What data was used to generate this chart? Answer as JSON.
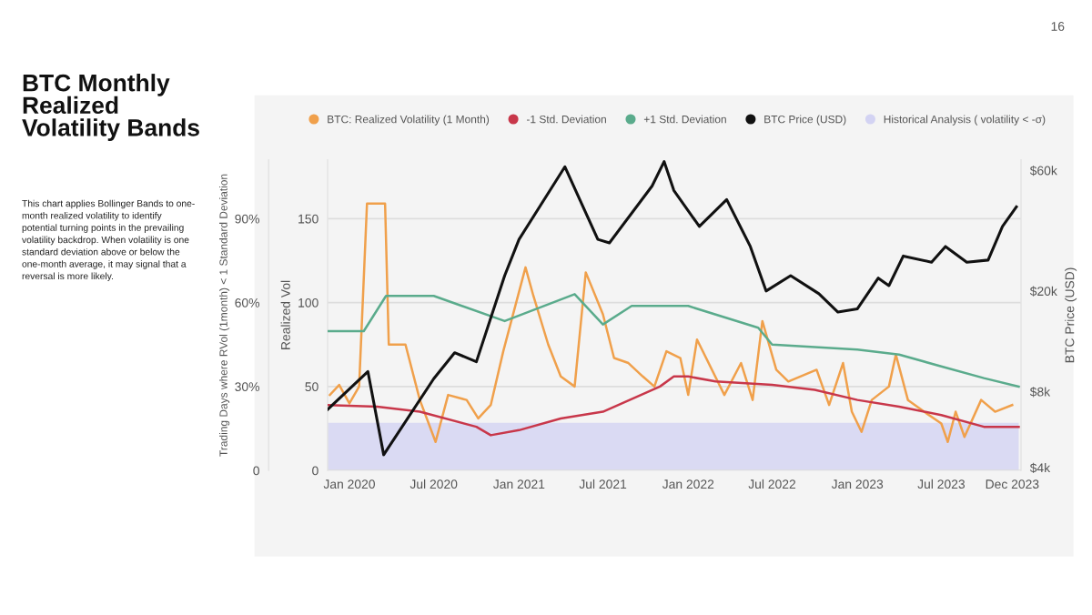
{
  "chart_data": {
    "type": "line",
    "title": "BTC Monthly\nRealized\nVolatility Bands",
    "subtitle": "This chart applies Bollinger Bands to one-\nmonth realized volatility to identify\npotential turning points in the prevailing\nvolatility backdrop. When volatility is one\nstandard deviation above or below the\none-month average, it may signal that a\nreversal is more likely.",
    "annotations": [
      "16"
    ],
    "ylabel": "Realized Vol",
    "y2label": "BTC Price (USD)",
    "y3label": "Trading Days where RVol (1month) < 1 Standard Deviation",
    "xlim": [
      "2019-11-15",
      "2023-12-20"
    ],
    "xticks": [
      {
        "value": "2020-01-01",
        "label": "Jan 2020"
      },
      {
        "value": "2020-07-01",
        "label": "Jul 2020"
      },
      {
        "value": "2021-01-01",
        "label": "Jan 2021"
      },
      {
        "value": "2021-07-01",
        "label": "Jul 2021"
      },
      {
        "value": "2022-01-01",
        "label": "Jan 2022"
      },
      {
        "value": "2022-07-01",
        "label": "Jul 2022"
      },
      {
        "value": "2023-01-01",
        "label": "Jan 2023"
      },
      {
        "value": "2023-07-01",
        "label": "Jul 2023"
      },
      {
        "value": "2023-12-01",
        "label": "Dec 2023"
      }
    ],
    "ylim": [
      0,
      185
    ],
    "yticks": [
      0,
      50,
      100,
      150
    ],
    "y2lim": [
      3900,
      66000
    ],
    "y2ticks": [
      {
        "value": 4000,
        "label": "$4k"
      },
      {
        "value": 8000,
        "label": "$8k"
      },
      {
        "value": 20000,
        "label": "$20k"
      },
      {
        "value": 60000,
        "label": "$60k"
      }
    ],
    "y3lim": [
      0,
      111
    ],
    "y3ticks": [
      0,
      {
        "value": 30,
        "label": "30%"
      },
      {
        "value": 60,
        "label": "60%"
      },
      {
        "value": 90,
        "label": "90%"
      }
    ],
    "log": "y2",
    "grid": "y",
    "legend": "top",
    "marker": "none",
    "line_style": "solid",
    "series": [
      {
        "name": "Historical Analysis ( volatility < -σ)",
        "type": "area",
        "axis": "y3",
        "color": "#d3d3f3",
        "x": [
          "2019-11-15",
          "2023-12-15"
        ],
        "values": [
          17,
          17
        ]
      },
      {
        "name": "BTC: Realized Volatility (1 Month)",
        "color": "#f0a04b",
        "x": [
          "2019-11-20",
          "2019-12-10",
          "2020-01-01",
          "2020-01-22",
          "2020-02-08",
          "2020-03-18",
          "2020-03-26",
          "2020-05-01",
          "2020-06-01",
          "2020-07-05",
          "2020-08-01",
          "2020-09-10",
          "2020-10-05",
          "2020-11-01",
          "2020-11-28",
          "2021-01-15",
          "2021-02-01",
          "2021-03-05",
          "2021-04-01",
          "2021-05-01",
          "2021-05-25",
          "2021-07-01",
          "2021-07-25",
          "2021-08-25",
          "2021-09-25",
          "2021-10-20",
          "2021-11-15",
          "2021-12-15",
          "2022-01-01",
          "2022-01-20",
          "2022-03-20",
          "2022-04-25",
          "2022-05-20",
          "2022-06-10",
          "2022-07-10",
          "2022-08-05",
          "2022-10-05",
          "2022-11-01",
          "2022-12-01",
          "2022-12-20",
          "2023-01-10",
          "2023-02-01",
          "2023-03-10",
          "2023-03-25",
          "2023-04-20",
          "2023-05-25",
          "2023-07-01",
          "2023-07-15",
          "2023-08-01",
          "2023-08-20",
          "2023-09-25",
          "2023-10-25",
          "2023-12-01"
        ],
        "values": [
          45,
          51,
          40,
          50,
          159,
          159,
          75,
          75,
          42,
          17,
          45,
          42,
          31,
          39,
          71,
          121,
          104,
          75,
          56,
          50,
          118,
          93,
          67,
          64,
          56,
          50,
          71,
          67,
          45,
          78,
          45,
          64,
          42,
          89,
          60,
          53,
          60,
          39,
          64,
          35,
          23,
          42,
          50,
          69,
          42,
          35,
          28,
          17,
          35,
          20,
          42,
          35,
          39
        ]
      },
      {
        "name": "-1 Std. Deviation",
        "color": "#c8374a",
        "x": [
          "2019-11-15",
          "2020-03-01",
          "2020-06-01",
          "2020-10-01",
          "2020-11-01",
          "2021-01-01",
          "2021-04-01",
          "2021-07-01",
          "2021-11-01",
          "2021-12-01",
          "2022-01-01",
          "2022-03-01",
          "2022-07-01",
          "2022-10-01",
          "2023-01-01",
          "2023-04-01",
          "2023-07-01",
          "2023-10-01",
          "2023-12-15"
        ],
        "values": [
          39,
          38,
          35,
          26,
          21,
          24,
          31,
          35,
          50,
          56,
          56,
          53,
          51,
          48,
          42,
          38,
          33,
          26,
          26
        ]
      },
      {
        "name": "+1 Std. Deviation",
        "color": "#5aab8c",
        "x": [
          "2019-11-15",
          "2020-02-01",
          "2020-03-20",
          "2020-07-01",
          "2020-12-01",
          "2021-05-01",
          "2021-07-01",
          "2021-09-01",
          "2022-01-01",
          "2022-06-01",
          "2022-07-01",
          "2023-01-01",
          "2023-04-01",
          "2023-07-01",
          "2023-10-01",
          "2023-12-15"
        ],
        "values": [
          83,
          83,
          104,
          104,
          89,
          105,
          87,
          98,
          98,
          85,
          75,
          72,
          69,
          62,
          55,
          50
        ]
      },
      {
        "name": "BTC Price (USD)",
        "axis": "y2",
        "color": "#111111",
        "x": [
          "2019-11-15",
          "2020-02-10",
          "2020-03-15",
          "2020-07-01",
          "2020-08-15",
          "2020-10-01",
          "2020-12-01",
          "2021-01-01",
          "2021-04-10",
          "2021-06-20",
          "2021-07-15",
          "2021-10-15",
          "2021-11-10",
          "2021-12-01",
          "2022-01-25",
          "2022-03-25",
          "2022-05-15",
          "2022-06-18",
          "2022-08-10",
          "2022-10-10",
          "2022-11-20",
          "2023-01-01",
          "2023-02-15",
          "2023-03-10",
          "2023-04-10",
          "2023-06-10",
          "2023-07-10",
          "2023-08-25",
          "2023-10-10",
          "2023-11-10",
          "2023-12-10"
        ],
        "values": [
          6800,
          9600,
          4500,
          9000,
          11400,
          10500,
          23000,
          32000,
          62000,
          32000,
          31000,
          52000,
          65000,
          50000,
          36000,
          46000,
          30000,
          20000,
          23000,
          19500,
          16500,
          17000,
          22500,
          21000,
          27500,
          26000,
          30000,
          26000,
          26500,
          36000,
          43000
        ]
      }
    ]
  }
}
